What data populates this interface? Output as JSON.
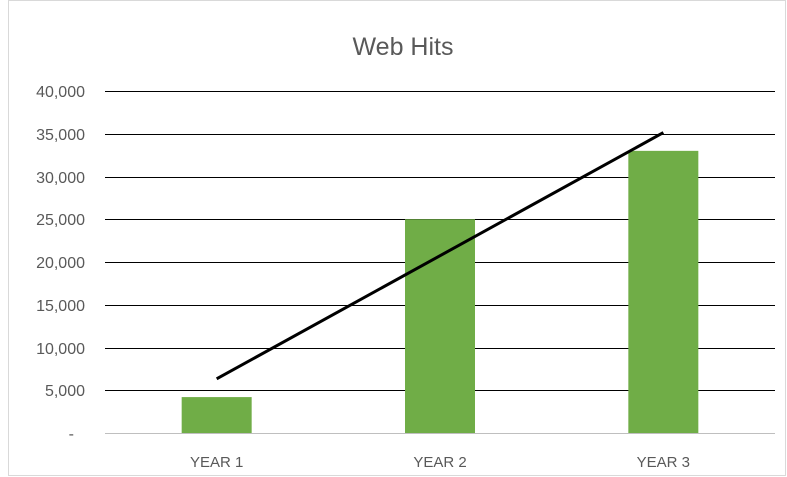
{
  "chart_data": {
    "type": "bar",
    "title": "Web Hits",
    "categories": [
      "YEAR 1",
      "YEAR 2",
      "YEAR 3"
    ],
    "values": [
      4200,
      25000,
      33000
    ],
    "ylim": [
      0,
      40000
    ],
    "yticks": [
      0,
      5000,
      10000,
      15000,
      20000,
      25000,
      30000,
      35000,
      40000
    ],
    "ytick_labels": [
      "-",
      "5,000",
      "10,000",
      "15,000",
      "20,000",
      "25,000",
      "30,000",
      "35,000",
      "40,000"
    ],
    "grid": true,
    "legend": false,
    "trendline": "linear",
    "colors": {
      "bar": "#70ad47",
      "trendline": "#000000",
      "gridline": "#000000",
      "axis": "#bfbfbf",
      "text": "#595959",
      "border": "#d9d9d9"
    }
  }
}
